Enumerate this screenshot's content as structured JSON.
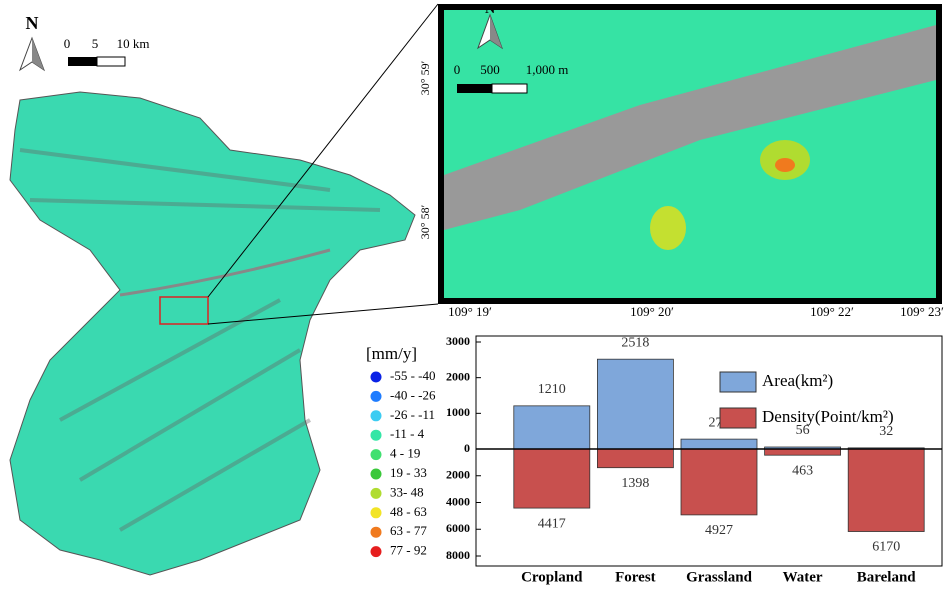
{
  "map": {
    "north": "N",
    "scale": [
      "0",
      "5",
      "10 km"
    ],
    "legend": {
      "title": "[mm/y]",
      "items": [
        {
          "label": "-55 - -40",
          "color": "#0a22e6"
        },
        {
          "label": "-40 - -26",
          "color": "#1e7cff"
        },
        {
          "label": "-26 - -11",
          "color": "#3cccf2"
        },
        {
          "label": "-11 - 4",
          "color": "#34e6a6"
        },
        {
          "label": "4 - 19",
          "color": "#40e070"
        },
        {
          "label": "19 - 33",
          "color": "#3ac83a"
        },
        {
          "label": "33- 48",
          "color": "#b0dc30"
        },
        {
          "label": "48 - 63",
          "color": "#f2e426"
        },
        {
          "label": "63 - 77",
          "color": "#f07a1e"
        },
        {
          "label": "77 - 92",
          "color": "#e61e1e"
        }
      ]
    }
  },
  "inset": {
    "north": "N",
    "scale": [
      "0",
      "500",
      "1,000 m"
    ],
    "lat_labels": [
      "30° 59′",
      "30° 58′"
    ],
    "lon_labels": [
      "109° 19′",
      "109° 20′",
      "109° 22′",
      "109° 23′"
    ]
  },
  "chart_data": {
    "type": "bar",
    "categories": [
      "Cropland",
      "Forest",
      "Grassland",
      "Water",
      "Bareland"
    ],
    "series": [
      {
        "name": "Area(km²)",
        "color": "#7fa7da",
        "values": [
          1210,
          2518,
          277,
          56,
          32
        ]
      },
      {
        "name": "Density(Point/km²)",
        "color": "#c8504e",
        "values": [
          4417,
          1398,
          4927,
          463,
          6170
        ],
        "axis": "y2"
      }
    ],
    "ylim": [
      0,
      3000
    ],
    "yticks": [
      0,
      1000,
      2000,
      3000
    ],
    "y2lim": [
      0,
      8000
    ],
    "y2ticks": [
      2000,
      4000,
      6000,
      8000
    ]
  }
}
